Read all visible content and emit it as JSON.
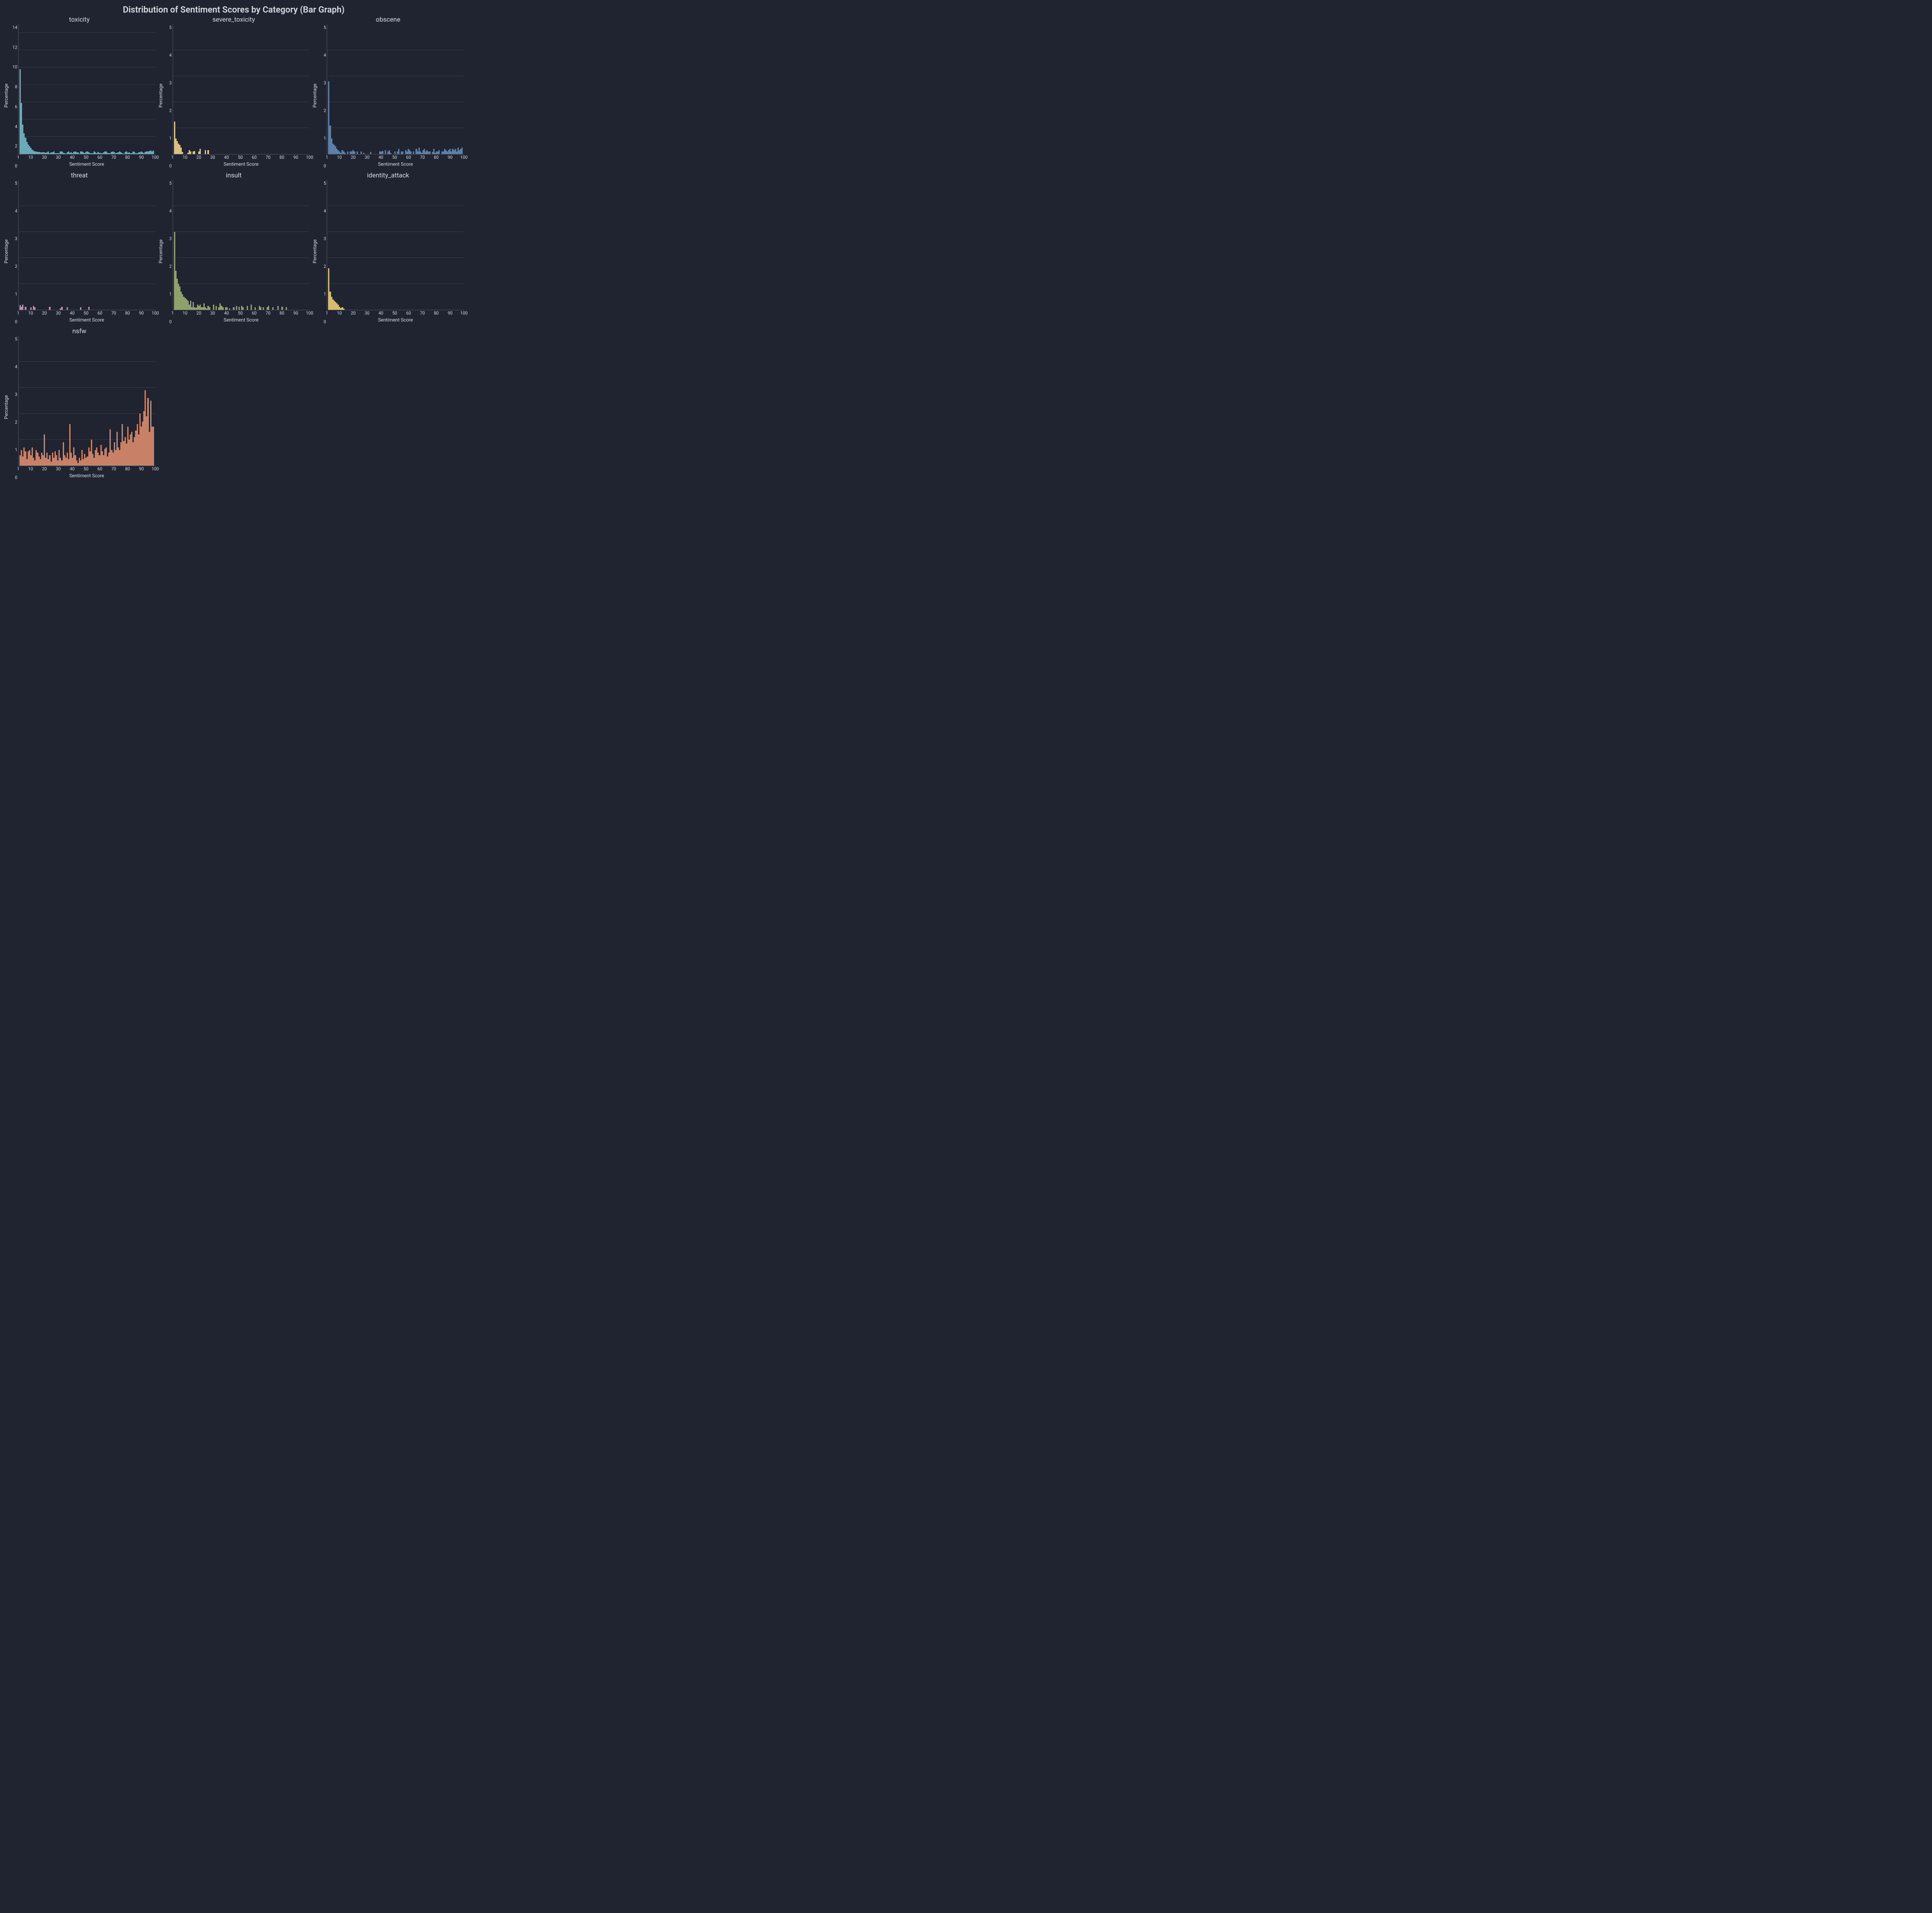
{
  "figure": {
    "suptitle": "Distribution of Sentiment Scores by Category (Bar Graph)",
    "suptitle_fontsize": 20,
    "background_color": "#1f2430",
    "text_color": "#d8dbe0",
    "grid_color": "rgba(200,205,215,0.12)",
    "spine_color": "#4a5260",
    "layout": {
      "rows": 3,
      "cols": 3
    },
    "xlabel": "Sentiment Score",
    "ylabel": "Percentage",
    "label_fontsize": 11,
    "xlim": [
      1,
      100
    ],
    "xticks": [
      1,
      10,
      20,
      30,
      40,
      50,
      60,
      70,
      80,
      90,
      100
    ],
    "bar_count": 100
  },
  "panels": [
    {
      "key": "toxicity",
      "title": "toxicity",
      "color": "#6aa9b7",
      "ylim": [
        0,
        15
      ],
      "yticks": [
        0,
        2,
        4,
        6,
        8,
        10,
        12,
        14
      ],
      "values": [
        9.8,
        5.9,
        3.4,
        2.4,
        1.9,
        1.4,
        1.1,
        0.9,
        0.7,
        0.5,
        0.4,
        0.3,
        0.3,
        0.25,
        0.24,
        0.22,
        0.22,
        0.2,
        0.2,
        0.15,
        0.2,
        0.3,
        0.1,
        0.2,
        0.2,
        0.3,
        0.1,
        0.12,
        0.1,
        0.1,
        0.3,
        0.3,
        0.15,
        0.1,
        0.05,
        0.2,
        0.3,
        0.15,
        0.2,
        0.1,
        0.25,
        0.3,
        0.2,
        0.2,
        0.05,
        0.3,
        0.3,
        0.2,
        0.1,
        0.25,
        0.3,
        0.2,
        0.1,
        0.1,
        0.1,
        0.3,
        0.2,
        0.1,
        0.25,
        0.15,
        0.1,
        0.1,
        0.2,
        0.3,
        0.3,
        0.15,
        0.1,
        0.1,
        0.25,
        0.3,
        0.2,
        0.1,
        0.15,
        0.2,
        0.3,
        0.2,
        0.1,
        0.05,
        0.25,
        0.3,
        0.15,
        0.2,
        0.1,
        0.1,
        0.3,
        0.25,
        0.1,
        0.1,
        0.2,
        0.2,
        0.3,
        0.2,
        0.1,
        0.25,
        0.3,
        0.3,
        0.35,
        0.4,
        0.3,
        0.4
      ]
    },
    {
      "key": "severe_toxicity",
      "title": "severe_toxicity",
      "color": "#dbc081",
      "ylim": [
        0,
        5
      ],
      "yticks": [
        0,
        1,
        2,
        3,
        4,
        5
      ],
      "values": [
        1.25,
        0.6,
        0.5,
        0.4,
        0.35,
        0.25,
        0.08,
        0,
        0,
        0,
        0.05,
        0.15,
        0.1,
        0,
        0.1,
        0.12,
        0,
        0,
        0.1,
        0.2,
        0,
        0,
        0,
        0.15,
        0,
        0.15,
        0,
        0,
        0,
        0,
        0,
        0,
        0,
        0,
        0,
        0,
        0,
        0,
        0,
        0,
        0,
        0,
        0,
        0,
        0,
        0,
        0,
        0,
        0,
        0,
        0,
        0,
        0,
        0,
        0,
        0,
        0,
        0,
        0,
        0,
        0,
        0,
        0,
        0,
        0,
        0,
        0,
        0,
        0,
        0,
        0,
        0,
        0,
        0,
        0,
        0,
        0,
        0,
        0,
        0,
        0,
        0,
        0,
        0,
        0,
        0,
        0,
        0,
        0,
        0,
        0,
        0,
        0,
        0,
        0,
        0,
        0,
        0,
        0,
        0
      ]
    },
    {
      "key": "obscene",
      "title": "obscene",
      "color": "#5b7fa6",
      "ylim": [
        0,
        5
      ],
      "yticks": [
        0,
        1,
        2,
        3,
        4,
        5
      ],
      "values": [
        2.8,
        1.1,
        0.6,
        0.4,
        0.35,
        0.3,
        0.2,
        0.15,
        0.1,
        0.05,
        0.15,
        0.1,
        0.05,
        0,
        0.1,
        0,
        0.1,
        0.1,
        0.15,
        0.1,
        0,
        0.1,
        0,
        0,
        0.1,
        0,
        0.05,
        0,
        0,
        0,
        0,
        0.08,
        0,
        0,
        0,
        0,
        0,
        0,
        0.1,
        0.1,
        0.12,
        0,
        0.15,
        0,
        0.1,
        0.15,
        0.05,
        0,
        0,
        0.1,
        0,
        0.1,
        0.2,
        0,
        0.1,
        0.1,
        0,
        0.15,
        0.1,
        0.2,
        0.15,
        0.1,
        0,
        0.1,
        0,
        0.2,
        0.1,
        0.25,
        0.1,
        0.05,
        0.15,
        0.2,
        0.1,
        0.15,
        0.1,
        0.1,
        0,
        0.08,
        0.2,
        0.05,
        0.1,
        0.1,
        0.15,
        0,
        0.1,
        0.1,
        0.2,
        0.15,
        0.1,
        0.15,
        0.2,
        0.1,
        0.2,
        0.15,
        0.2,
        0.1,
        0.25,
        0.15,
        0.2,
        0.25
      ]
    },
    {
      "key": "threat",
      "title": "threat",
      "color": "#b98fb0",
      "ylim": [
        0,
        5
      ],
      "yticks": [
        0,
        1,
        2,
        3,
        4,
        5
      ],
      "values": [
        0.18,
        0.12,
        0.2,
        0,
        0.12,
        0,
        0,
        0,
        0.1,
        0,
        0.15,
        0.1,
        0,
        0,
        0,
        0,
        0,
        0,
        0,
        0,
        0,
        0,
        0.12,
        0,
        0,
        0,
        0,
        0,
        0,
        0,
        0.05,
        0.12,
        0,
        0,
        0,
        0.1,
        0,
        0,
        0,
        0,
        0,
        0,
        0,
        0,
        0,
        0.1,
        0,
        0,
        0,
        0,
        0,
        0.12,
        0,
        0,
        0,
        0,
        0,
        0,
        0,
        0,
        0,
        0,
        0,
        0,
        0,
        0,
        0,
        0,
        0,
        0,
        0,
        0,
        0,
        0,
        0,
        0,
        0,
        0,
        0,
        0,
        0,
        0,
        0,
        0,
        0,
        0,
        0,
        0,
        0,
        0,
        0,
        0,
        0,
        0,
        0,
        0,
        0,
        0,
        0,
        0
      ]
    },
    {
      "key": "insult",
      "title": "insult",
      "color": "#90a06b",
      "ylim": [
        0,
        5
      ],
      "yticks": [
        0,
        1,
        2,
        3,
        4,
        5
      ],
      "values": [
        3.0,
        1.5,
        1.2,
        1.0,
        0.9,
        0.7,
        0.6,
        0.5,
        0.45,
        0.4,
        0.35,
        0.2,
        0.35,
        0.1,
        0.3,
        0.1,
        0.08,
        0.2,
        0.15,
        0.2,
        0.1,
        0.1,
        0.25,
        0.1,
        0.05,
        0.15,
        0.1,
        0,
        0,
        0.2,
        0,
        0.15,
        0,
        0.1,
        0.25,
        0.15,
        0.1,
        0,
        0.1,
        0.1,
        0,
        0.05,
        0,
        0,
        0.1,
        0,
        0.15,
        0,
        0.12,
        0,
        0.15,
        0.1,
        0,
        0,
        0.15,
        0,
        0,
        0.2,
        0,
        0,
        0.1,
        0,
        0,
        0.15,
        0.1,
        0,
        0.1,
        0,
        0,
        0.1,
        0.15,
        0,
        0,
        0.1,
        0,
        0,
        0,
        0.15,
        0,
        0,
        0.12,
        0,
        0,
        0.1,
        0,
        0,
        0,
        0,
        0,
        0,
        0,
        0,
        0,
        0,
        0,
        0,
        0,
        0,
        0,
        0
      ]
    },
    {
      "key": "identity_attack",
      "title": "identity_attack",
      "color": "#d6bb70",
      "ylim": [
        0,
        5
      ],
      "yticks": [
        0,
        1,
        2,
        3,
        4,
        5
      ],
      "values": [
        1.6,
        0.7,
        0.5,
        0.4,
        0.35,
        0.3,
        0.25,
        0.2,
        0.12,
        0.06,
        0.1,
        0.05,
        0,
        0,
        0,
        0,
        0,
        0,
        0,
        0,
        0,
        0,
        0,
        0,
        0,
        0,
        0,
        0,
        0,
        0,
        0,
        0,
        0,
        0,
        0,
        0,
        0,
        0,
        0,
        0,
        0,
        0,
        0,
        0,
        0,
        0,
        0,
        0,
        0,
        0,
        0,
        0,
        0,
        0,
        0,
        0,
        0,
        0,
        0,
        0,
        0,
        0,
        0,
        0,
        0,
        0,
        0,
        0,
        0,
        0,
        0,
        0,
        0,
        0,
        0,
        0,
        0,
        0,
        0,
        0,
        0,
        0,
        0,
        0,
        0,
        0,
        0,
        0,
        0,
        0,
        0,
        0,
        0,
        0,
        0,
        0,
        0,
        0,
        0,
        0
      ]
    },
    {
      "key": "nsfw",
      "title": "nsfw",
      "color": "#c88066",
      "ylim": [
        0,
        5
      ],
      "yticks": [
        0,
        1,
        2,
        3,
        4,
        5
      ],
      "values": [
        0.4,
        0.6,
        0.35,
        0.7,
        0.55,
        0.25,
        0.55,
        0.6,
        0.4,
        0.7,
        0.3,
        0.2,
        0.6,
        0.5,
        0.35,
        0.25,
        0.5,
        0.4,
        1.2,
        0.3,
        0.5,
        0.25,
        0.4,
        0.15,
        0.5,
        0.3,
        0.55,
        0.4,
        0.2,
        0.6,
        0.3,
        0.2,
        0.9,
        0.4,
        0.3,
        0.5,
        0.25,
        1.6,
        0.5,
        0.3,
        0.7,
        0.4,
        0.2,
        0.1,
        0.3,
        0.2,
        0.6,
        0.25,
        0.45,
        0.3,
        0.35,
        0.7,
        0.55,
        1.0,
        0.45,
        0.3,
        0.6,
        0.7,
        0.5,
        0.4,
        0.8,
        0.55,
        0.4,
        0.65,
        0.7,
        0.35,
        0.5,
        1.4,
        0.6,
        0.5,
        0.9,
        0.6,
        1.3,
        0.7,
        0.6,
        0.9,
        1.6,
        0.95,
        1.1,
        0.85,
        1.5,
        1.0,
        1.2,
        1.3,
        0.9,
        1.1,
        1.35,
        1.6,
        1.2,
        2.0,
        1.5,
        1.7,
        2.1,
        2.9,
        1.9,
        2.6,
        1.3,
        2.5,
        1.5,
        1.5
      ]
    }
  ]
}
